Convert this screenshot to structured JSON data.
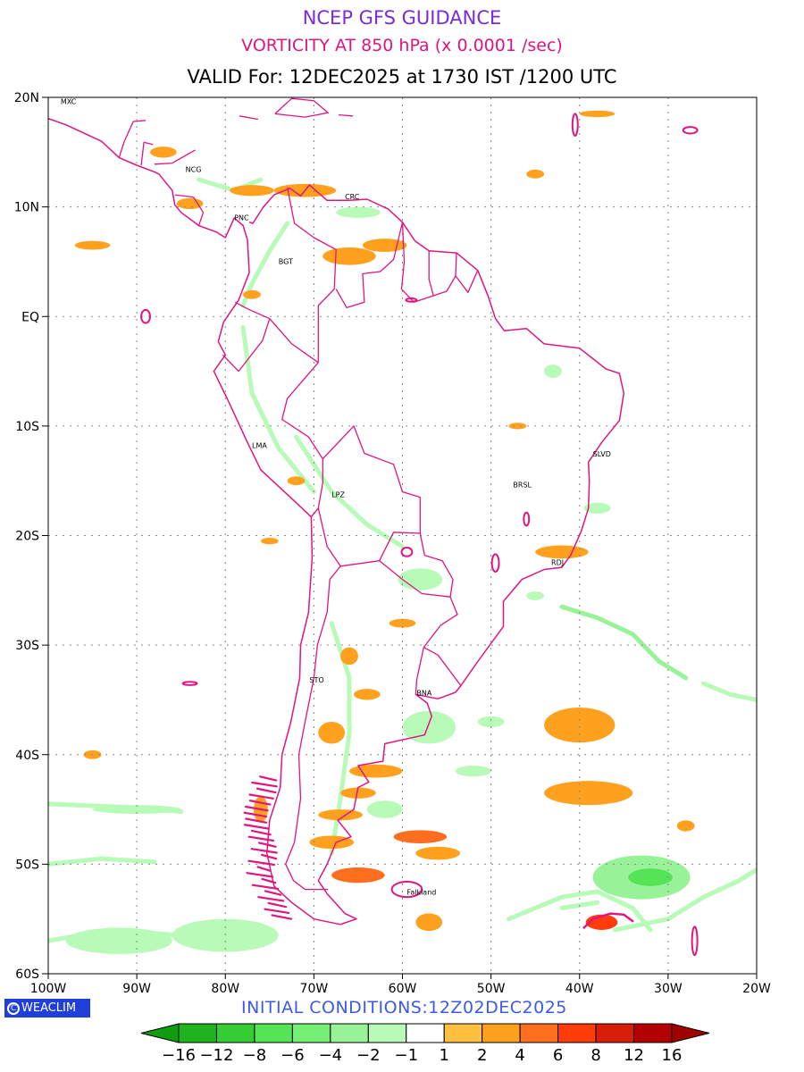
{
  "header": {
    "title": "NCEP GFS GUIDANCE",
    "subtitle": "VORTICITY AT 850 hPa (x 0.0001 /sec)",
    "valid": "VALID For: 12DEC2025 at 1730 IST /1200 UTC",
    "title_color": "#7b2bd9",
    "subtitle_color": "#e0157f"
  },
  "map": {
    "region": "South America",
    "lat_labels": [
      "20N",
      "10N",
      "EQ",
      "10S",
      "20S",
      "30S",
      "40S",
      "50S",
      "60S"
    ],
    "lon_labels": [
      "100W",
      "90W",
      "80W",
      "70W",
      "60W",
      "50W",
      "40W",
      "30W",
      "20W"
    ],
    "lat_range": [
      -60,
      20
    ],
    "lon_range": [
      -100,
      -20
    ],
    "grid": "dotted",
    "boundary_color": "#e0157f",
    "cities": [
      {
        "name": "MXC",
        "lon": -98.6,
        "lat": 19.4
      },
      {
        "name": "NCG",
        "lon": -84.5,
        "lat": 13.2
      },
      {
        "name": "PNC",
        "lon": -79.0,
        "lat": 8.8
      },
      {
        "name": "CRC",
        "lon": -66.5,
        "lat": 10.7
      },
      {
        "name": "BGT",
        "lon": -74.0,
        "lat": 4.8
      },
      {
        "name": "LMA",
        "lon": -77.0,
        "lat": -12.0
      },
      {
        "name": "LPZ",
        "lon": -68.0,
        "lat": -16.5
      },
      {
        "name": "SLVD",
        "lon": -38.5,
        "lat": -12.8
      },
      {
        "name": "BRSL",
        "lon": -47.5,
        "lat": -15.6
      },
      {
        "name": "RDJ",
        "lon": -43.2,
        "lat": -22.7
      },
      {
        "name": "STO",
        "lon": -70.5,
        "lat": -33.4
      },
      {
        "name": "BNA",
        "lon": -58.4,
        "lat": -34.6
      },
      {
        "name": "Falkland",
        "lon": -59.5,
        "lat": -52.8
      }
    ],
    "vorticity_blobs": [
      {
        "lon": -71,
        "lat": 11.5,
        "rx": 3.5,
        "ry": 0.6,
        "v": 2
      },
      {
        "lon": -77,
        "lat": 11.5,
        "rx": 2.5,
        "ry": 0.5,
        "v": 2
      },
      {
        "lon": -84,
        "lat": 10.3,
        "rx": 1.5,
        "ry": 0.5,
        "v": 2
      },
      {
        "lon": -66,
        "lat": 5.5,
        "rx": 3.0,
        "ry": 0.8,
        "v": 2
      },
      {
        "lon": -62,
        "lat": 6.5,
        "rx": 2.5,
        "ry": 0.6,
        "v": 2
      },
      {
        "lon": -95,
        "lat": 6.5,
        "rx": 2.0,
        "ry": 0.4,
        "v": 2
      },
      {
        "lon": -47,
        "lat": -10.0,
        "rx": 1.0,
        "ry": 0.3,
        "v": 2
      },
      {
        "lon": -42,
        "lat": -21.5,
        "rx": 3.0,
        "ry": 0.6,
        "v": 2
      },
      {
        "lon": -60,
        "lat": -28.0,
        "rx": 1.5,
        "ry": 0.4,
        "v": 2
      },
      {
        "lon": -66,
        "lat": -31.0,
        "rx": 1.0,
        "ry": 0.8,
        "v": 2
      },
      {
        "lon": -64,
        "lat": -34.5,
        "rx": 1.5,
        "ry": 0.5,
        "v": 2
      },
      {
        "lon": -68,
        "lat": -38.0,
        "rx": 1.5,
        "ry": 1.0,
        "v": 2
      },
      {
        "lon": -63,
        "lat": -41.5,
        "rx": 3.0,
        "ry": 0.6,
        "v": 2
      },
      {
        "lon": -65,
        "lat": -43.5,
        "rx": 2.0,
        "ry": 0.5,
        "v": 2
      },
      {
        "lon": -67,
        "lat": -45.5,
        "rx": 2.5,
        "ry": 0.5,
        "v": 2
      },
      {
        "lon": -68,
        "lat": -48.0,
        "rx": 2.5,
        "ry": 0.6,
        "v": 2
      },
      {
        "lon": -65,
        "lat": -51.0,
        "rx": 3.0,
        "ry": 0.7,
        "v": 4
      },
      {
        "lon": -58,
        "lat": -47.5,
        "rx": 3.0,
        "ry": 0.6,
        "v": 4
      },
      {
        "lon": -56,
        "lat": -49.0,
        "rx": 2.5,
        "ry": 0.6,
        "v": 2
      },
      {
        "lon": -40,
        "lat": -37.3,
        "rx": 4.0,
        "ry": 1.6,
        "v": 2
      },
      {
        "lon": -39,
        "lat": -43.5,
        "rx": 5.0,
        "ry": 1.1,
        "v": 2
      },
      {
        "lon": -28,
        "lat": -46.5,
        "rx": 1.0,
        "ry": 0.5,
        "v": 2
      },
      {
        "lon": -37.5,
        "lat": -55.3,
        "rx": 1.8,
        "ry": 0.7,
        "v": 6
      },
      {
        "lon": -95,
        "lat": -40.0,
        "rx": 1.0,
        "ry": 0.4,
        "v": 2
      },
      {
        "lon": -76,
        "lat": -45.0,
        "rx": 0.8,
        "ry": 1.2,
        "v": 2
      },
      {
        "lon": -57,
        "lat": -55.3,
        "rx": 1.5,
        "ry": 0.8,
        "v": 2
      },
      {
        "lon": -72,
        "lat": -15.0,
        "rx": 1.0,
        "ry": 0.4,
        "v": 2
      },
      {
        "lon": -77,
        "lat": 2.0,
        "rx": 1.0,
        "ry": 0.4,
        "v": 2
      },
      {
        "lon": -87,
        "lat": 15.0,
        "rx": 1.5,
        "ry": 0.5,
        "v": 2
      },
      {
        "lon": -38,
        "lat": 18.5,
        "rx": 2.0,
        "ry": 0.3,
        "v": 2
      },
      {
        "lon": -45,
        "lat": 13.0,
        "rx": 1.0,
        "ry": 0.4,
        "v": 2
      },
      {
        "lon": -75,
        "lat": -20.5,
        "rx": 1.0,
        "ry": 0.3,
        "v": 2
      }
    ],
    "negative_blobs": [
      {
        "lon": -33,
        "lat": -51.2,
        "rx": 5.5,
        "ry": 2.0,
        "v": -4
      },
      {
        "lon": -32,
        "lat": -51.2,
        "rx": 2.5,
        "ry": 0.8,
        "v": -8
      },
      {
        "lon": -80,
        "lat": -56.5,
        "rx": 6.0,
        "ry": 1.5,
        "v": -2
      },
      {
        "lon": -92,
        "lat": -57.0,
        "rx": 6.0,
        "ry": 1.2,
        "v": -2
      },
      {
        "lon": -57,
        "lat": -37.5,
        "rx": 3.0,
        "ry": 1.5,
        "v": -2
      },
      {
        "lon": -52,
        "lat": -41.5,
        "rx": 2.0,
        "ry": 0.5,
        "v": -2
      },
      {
        "lon": -62,
        "lat": -45.0,
        "rx": 2.0,
        "ry": 0.8,
        "v": -2
      },
      {
        "lon": -58,
        "lat": -24.0,
        "rx": 2.5,
        "ry": 1.0,
        "v": -2
      },
      {
        "lon": -38,
        "lat": -17.5,
        "rx": 1.5,
        "ry": 0.5,
        "v": -2
      },
      {
        "lon": -50,
        "lat": -37.0,
        "rx": 1.5,
        "ry": 0.5,
        "v": -2
      },
      {
        "lon": -90,
        "lat": -45.0,
        "rx": 5.0,
        "ry": 0.4,
        "v": -2
      },
      {
        "lon": -65,
        "lat": 9.5,
        "rx": 2.5,
        "ry": 0.5,
        "v": -2
      },
      {
        "lon": -43,
        "lat": -5.0,
        "rx": 1.0,
        "ry": 0.6,
        "v": -2
      },
      {
        "lon": -45,
        "lat": -25.5,
        "rx": 1.0,
        "ry": 0.4,
        "v": -2
      }
    ],
    "negative_streaks": [
      {
        "points": [
          [
            -78,
            -1
          ],
          [
            -77,
            -7
          ],
          [
            -74,
            -12
          ],
          [
            -70,
            -16
          ]
        ],
        "v": -2
      },
      {
        "points": [
          [
            -72,
            -11
          ],
          [
            -68,
            -16
          ],
          [
            -64,
            -19
          ],
          [
            -60,
            -21
          ]
        ],
        "v": -2
      },
      {
        "points": [
          [
            -78,
            1
          ],
          [
            -77,
            3
          ],
          [
            -75,
            6
          ],
          [
            -73,
            8.5
          ]
        ],
        "v": -2
      },
      {
        "points": [
          [
            -42,
            -26.5
          ],
          [
            -38,
            -27.5
          ],
          [
            -34,
            -29
          ],
          [
            -31,
            -31.5
          ],
          [
            -28,
            -33
          ]
        ],
        "v": -4
      },
      {
        "points": [
          [
            -26,
            -33.5
          ],
          [
            -23,
            -34.5
          ],
          [
            -20,
            -35
          ]
        ],
        "v": -2
      },
      {
        "points": [
          [
            -48,
            -55
          ],
          [
            -42,
            -53
          ],
          [
            -38,
            -52.5
          ],
          [
            -34,
            -54
          ],
          [
            -32,
            -56
          ]
        ],
        "v": -2
      },
      {
        "points": [
          [
            -42,
            -54
          ],
          [
            -38,
            -53.5
          ]
        ],
        "v": -2
      },
      {
        "points": [
          [
            -36,
            -56
          ],
          [
            -30,
            -55
          ],
          [
            -26,
            -53
          ],
          [
            -22,
            -51.5
          ],
          [
            -20,
            -50.5
          ]
        ],
        "v": -2
      },
      {
        "points": [
          [
            -100,
            -44.5
          ],
          [
            -91,
            -44.8
          ],
          [
            -85,
            -45.2
          ]
        ],
        "v": -2
      },
      {
        "points": [
          [
            -100,
            -50
          ],
          [
            -94,
            -49.5
          ],
          [
            -88,
            -49.8
          ]
        ],
        "v": -2
      },
      {
        "points": [
          [
            -100,
            -57
          ],
          [
            -93,
            -56
          ],
          [
            -85,
            -56.5
          ],
          [
            -80,
            -55.5
          ]
        ],
        "v": -2
      },
      {
        "points": [
          [
            -83,
            12.5
          ],
          [
            -79,
            11.5
          ],
          [
            -76,
            12.5
          ]
        ],
        "v": -2
      },
      {
        "points": [
          [
            -68,
            -28
          ],
          [
            -66,
            -33
          ],
          [
            -66,
            -38
          ],
          [
            -67,
            -44
          ],
          [
            -68,
            -49
          ]
        ],
        "v": -2
      }
    ],
    "magenta_features": [
      {
        "lon": -27,
        "lat": -57,
        "rx": 0.3,
        "ry": 1.3
      },
      {
        "lon": -40.5,
        "lat": 17.5,
        "rx": 0.3,
        "ry": 1.0
      },
      {
        "lon": -27.5,
        "lat": 17.0,
        "rx": 0.8,
        "ry": 0.3
      },
      {
        "lon": -89,
        "lat": 0.0,
        "rx": 0.5,
        "ry": 0.6
      },
      {
        "lon": -59.5,
        "lat": -52.3,
        "rx": 1.7,
        "ry": 0.7
      },
      {
        "lon": -84,
        "lat": -33.5,
        "rx": 0.8,
        "ry": 0.15
      },
      {
        "lon": -59,
        "lat": 1.5,
        "rx": 0.6,
        "ry": 0.15
      },
      {
        "lon": -59.5,
        "lat": -21.5,
        "rx": 0.6,
        "ry": 0.4
      },
      {
        "lon": -46,
        "lat": -18.5,
        "rx": 0.3,
        "ry": 0.6
      },
      {
        "lon": -49.5,
        "lat": -22.5,
        "rx": 0.4,
        "ry": 0.8
      }
    ]
  },
  "colorbar": {
    "labels": [
      "-16",
      "-12",
      "-8",
      "-6",
      "-4",
      "-2",
      "-1",
      "1",
      "2",
      "4",
      "6",
      "8",
      "12",
      "16"
    ],
    "colors": [
      "#0f9c0f",
      "#1fb41f",
      "#36cc36",
      "#55e455",
      "#74ee74",
      "#98f298",
      "#b8fab8",
      "#ffffff",
      "#ffc040",
      "#ffa01e",
      "#ff6e1e",
      "#ff3c0a",
      "#d81e0a",
      "#b40000",
      "#a00000"
    ]
  },
  "footer": {
    "logo_text": "WEACLIM",
    "logo_icon": "copyright-c-icon",
    "init": "INITIAL CONDITIONS:12Z02DEC2025",
    "init_color": "#3c5ae6"
  }
}
